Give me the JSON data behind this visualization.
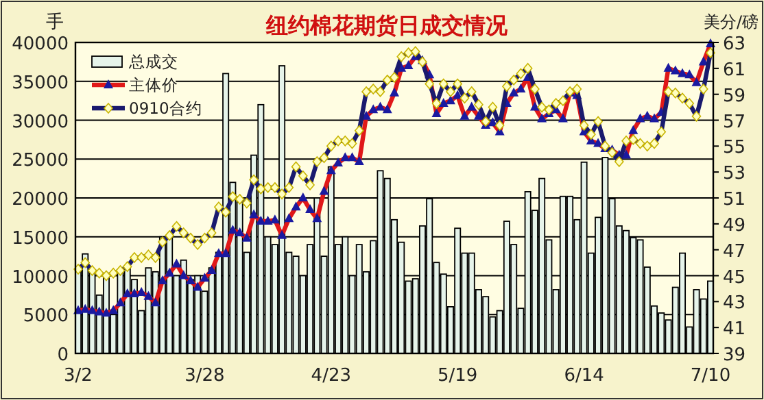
{
  "chart_data": {
    "type": "bar",
    "title": "纽约棉花期货日成交情况",
    "ylabel": "手",
    "y2label": "美分/磅",
    "categories": [
      "3/2",
      null,
      null,
      null,
      null,
      null,
      null,
      null,
      null,
      null,
      null,
      null,
      null,
      null,
      null,
      null,
      null,
      null,
      "3/28",
      null,
      null,
      null,
      null,
      null,
      null,
      null,
      null,
      null,
      null,
      null,
      null,
      null,
      null,
      null,
      null,
      null,
      "4/23",
      null,
      null,
      null,
      null,
      null,
      null,
      null,
      null,
      null,
      null,
      null,
      null,
      null,
      null,
      null,
      null,
      null,
      "5/19",
      null,
      null,
      null,
      null,
      null,
      null,
      null,
      null,
      null,
      null,
      null,
      null,
      null,
      null,
      null,
      null,
      null,
      "6/14",
      null,
      null,
      null,
      null,
      null,
      null,
      null,
      null,
      null,
      null,
      null,
      null,
      null,
      null,
      null,
      null,
      null,
      "7/10"
    ],
    "series": [
      {
        "name": "总成交",
        "color": "#e6f4ea",
        "values": [
          11000,
          12800,
          10500,
          7500,
          10000,
          5000,
          10500,
          11000,
          9500,
          5500,
          11000,
          10500,
          15000,
          15000,
          10000,
          12000,
          9500,
          10000,
          8000,
          11000,
          13000,
          36000,
          22000,
          19500,
          13000,
          25500,
          32000,
          15000,
          14000,
          37000,
          13000,
          12500,
          10000,
          14000,
          20000,
          12500,
          24000,
          14000,
          15000,
          10000,
          14000,
          10500,
          14500,
          23500,
          22500,
          17200,
          14300,
          9300,
          9600,
          16400,
          19900,
          11700,
          10200,
          6000,
          16100,
          12900,
          12900,
          8200,
          7300,
          4700,
          5500,
          17000,
          14000,
          5800,
          20800,
          18400,
          22500,
          14600,
          8200,
          20200,
          20200,
          17200,
          24600,
          12900,
          17500,
          25200,
          19900,
          16400,
          15800,
          14900,
          14600,
          11100,
          6100,
          5200,
          4300,
          8500,
          12900,
          3400,
          8200,
          7000,
          9300
        ]
      },
      {
        "name": "主体价",
        "type": "line",
        "axis": "y2",
        "color": "#e01818",
        "marker": "triangle",
        "values": [
          42.3,
          42.4,
          42.3,
          42.2,
          42.1,
          42.3,
          42.9,
          43.6,
          43.6,
          43.7,
          43.4,
          42.9,
          44.6,
          45.2,
          45.9,
          45.0,
          44.6,
          44.1,
          44.8,
          45.4,
          46.7,
          46.7,
          48.5,
          48.3,
          47.9,
          49.7,
          49.2,
          49.2,
          49.3,
          48.1,
          49.4,
          50.3,
          51.0,
          50.1,
          49.4,
          51.5,
          53.1,
          53.7,
          54.1,
          54.1,
          53.8,
          57.3,
          57.8,
          58.0,
          57.8,
          59.1,
          61.0,
          61.2,
          61.9,
          61.6,
          60.5,
          57.5,
          58.3,
          58.5,
          58.9,
          57.3,
          58.0,
          57.3,
          56.6,
          56.8,
          56.1,
          58.3,
          59.1,
          59.4,
          60.3,
          58.0,
          57.1,
          57.5,
          57.8,
          57.1,
          59.1,
          58.9,
          56.1,
          55.4,
          55.2,
          54.8,
          54.7,
          54.3,
          54.3,
          56.2,
          57.1,
          57.3,
          57.1,
          57.6,
          61.0,
          60.8,
          60.6,
          60.5,
          59.9,
          61.5,
          62.9
        ]
      },
      {
        "name": "0910合约",
        "type": "line",
        "axis": "y2",
        "color": "#1a1a6e",
        "marker": "diamond",
        "values": [
          45.5,
          46.0,
          45.4,
          45.2,
          45.0,
          45.2,
          45.4,
          45.7,
          46.4,
          46.4,
          46.6,
          46.4,
          47.6,
          48.1,
          48.8,
          48.3,
          47.9,
          47.4,
          47.9,
          48.3,
          50.3,
          49.9,
          51.1,
          50.9,
          50.6,
          52.4,
          51.7,
          51.8,
          51.8,
          51.3,
          51.8,
          53.4,
          52.7,
          52.0,
          53.8,
          54.1,
          55.0,
          55.4,
          55.4,
          55.2,
          56.2,
          59.2,
          59.4,
          59.2,
          60.1,
          60.3,
          61.9,
          62.2,
          62.3,
          61.5,
          59.8,
          58.3,
          59.8,
          59.2,
          59.8,
          58.7,
          59.2,
          58.2,
          56.9,
          58.0,
          56.6,
          59.6,
          60.1,
          60.6,
          61.0,
          59.4,
          58.0,
          57.8,
          58.3,
          58.5,
          59.2,
          59.4,
          56.6,
          55.9,
          56.9,
          55.0,
          54.5,
          53.8,
          55.4,
          55.5,
          55.2,
          55.0,
          55.2,
          56.1,
          59.2,
          59.1,
          58.7,
          58.3,
          57.3,
          59.4,
          62.2
        ]
      }
    ],
    "ylim": [
      0,
      40000
    ],
    "yticks": [
      0,
      5000,
      10000,
      15000,
      20000,
      25000,
      30000,
      35000,
      40000
    ],
    "y2lim": [
      39,
      63
    ],
    "y2ticks": [
      39,
      41,
      43,
      45,
      47,
      49,
      51,
      53,
      55,
      57,
      59,
      61,
      63
    ],
    "grid": "y",
    "legend": "top left"
  }
}
